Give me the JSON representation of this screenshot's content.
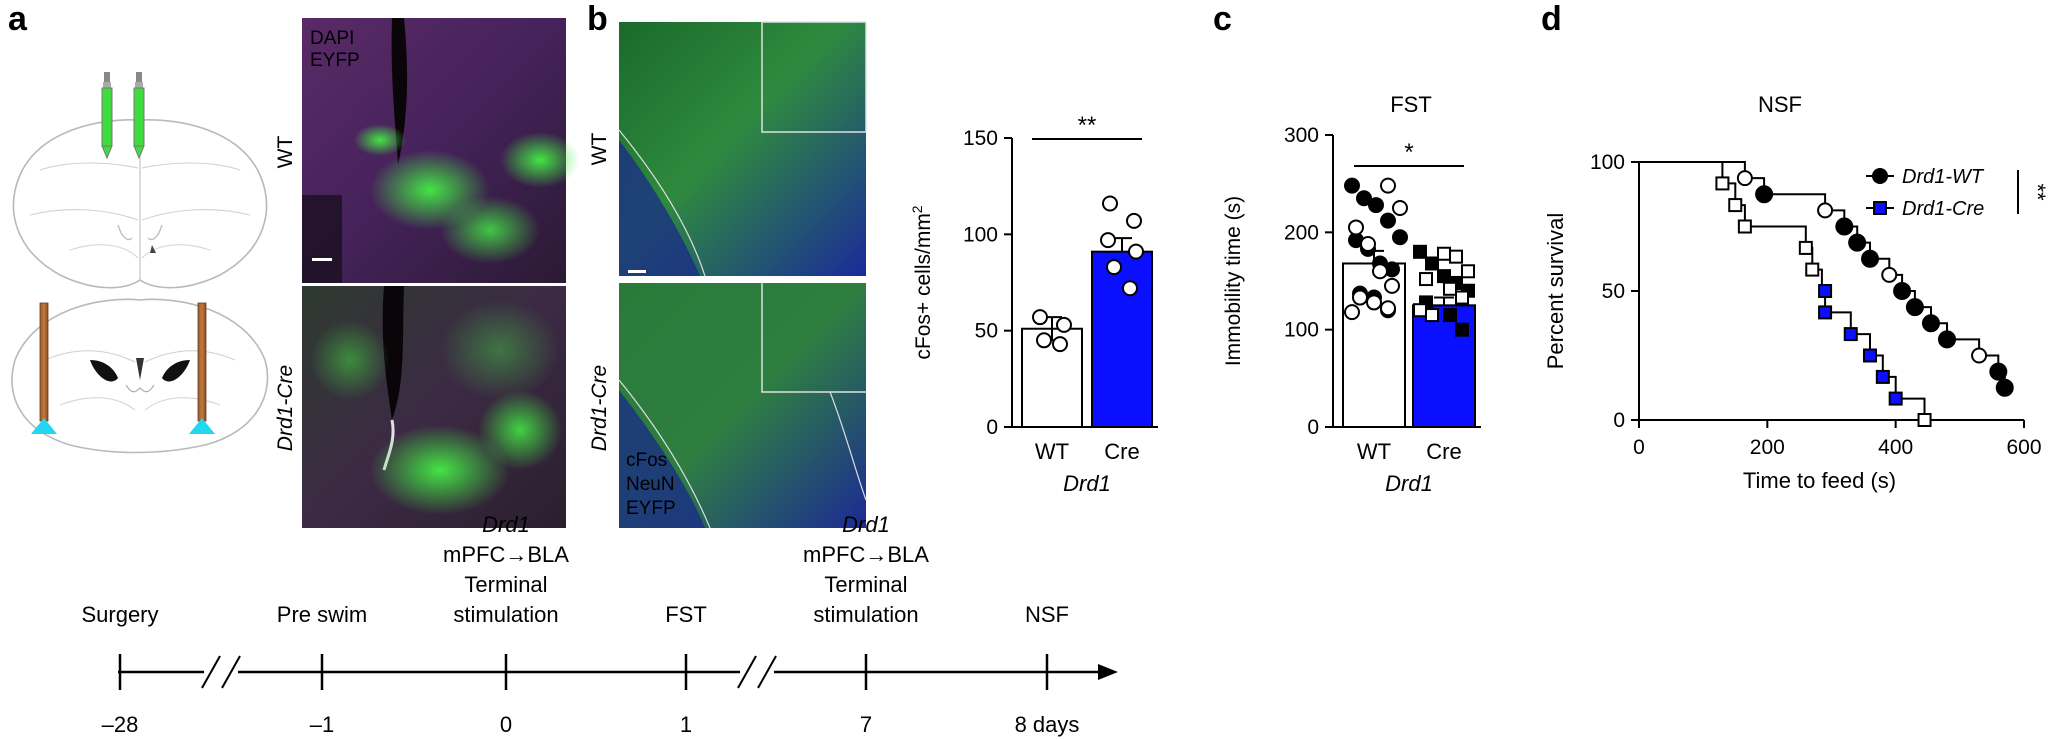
{
  "panels": {
    "a": "a",
    "b": "b",
    "c": "c",
    "d": "d"
  },
  "micrographs_a": {
    "legend_dapi": "DAPI",
    "legend_eyfp": "EYFP",
    "row_wt": "WT",
    "row_cre": "Drd1-Cre",
    "colors": {
      "dapi": "#e020e0",
      "eyfp": "#44ee44",
      "tissue": "#4a2250"
    }
  },
  "micrographs_b": {
    "row_wt": "WT",
    "row_cre": "Drd1-Cre",
    "legend_cfos": "cFos",
    "legend_neun": "NeuN",
    "legend_eyfp": "EYFP",
    "colors": {
      "cfos": "#ff2020",
      "neun": "#2030ff",
      "eyfp": "#30e030"
    }
  },
  "timeline": {
    "events": [
      {
        "label_lines": [
          "Surgery"
        ],
        "day": "–28"
      },
      {
        "label_lines": [
          "Pre swim"
        ],
        "day": "–1"
      },
      {
        "label_lines": [
          "Drd1",
          "mPFC→BLA",
          "Terminal",
          "stimulation"
        ],
        "day": "0"
      },
      {
        "label_lines": [
          "FST"
        ],
        "day": "1"
      },
      {
        "label_lines": [
          "Drd1",
          "mPFC→BLA",
          "Terminal",
          "stimulation"
        ],
        "day": "7"
      },
      {
        "label_lines": [
          "NSF"
        ],
        "day": "8 days"
      }
    ]
  },
  "chart_data": [
    {
      "id": "b-cfos",
      "type": "bar",
      "title": "",
      "categories": [
        "WT",
        "Cre"
      ],
      "values": [
        51,
        91
      ],
      "errors": [
        6,
        7
      ],
      "bar_colors": [
        "#ffffff",
        "#0a10ff"
      ],
      "points": [
        [
          57,
          53,
          45,
          43
        ],
        [
          116,
          107,
          97,
          91,
          83,
          72
        ]
      ],
      "ylabel": "cFos+ cells/mm²",
      "ylabel_main": "cFos+ cells/mm",
      "ylabel_sup": "2",
      "xlabel": "Drd1",
      "ylim": [
        0,
        150
      ],
      "yticks": [
        0,
        50,
        100,
        150
      ],
      "significance": "**"
    },
    {
      "id": "c-fst",
      "type": "bar",
      "title": "FST",
      "categories": [
        "WT",
        "Cre"
      ],
      "values": [
        168,
        125
      ],
      "errors": [
        13,
        8
      ],
      "bar_colors": [
        "#ffffff",
        "#0a10ff"
      ],
      "points_filled": [
        [
          248,
          235,
          228,
          212,
          195,
          192,
          183,
          168,
          162,
          137,
          133,
          120
        ],
        [
          180,
          168,
          155,
          148,
          140,
          128,
          115,
          100
        ]
      ],
      "points_open": [
        [
          248,
          225,
          205,
          188,
          160,
          145,
          133,
          128,
          122,
          118
        ],
        [
          178,
          175,
          160,
          152,
          142,
          133,
          120,
          115
        ]
      ],
      "ylabel": "Immobility time (s)",
      "xlabel": "Drd1",
      "ylim": [
        0,
        300
      ],
      "yticks": [
        0,
        100,
        200,
        300
      ],
      "significance": "*"
    },
    {
      "id": "d-nsf",
      "type": "line",
      "title": "NSF",
      "xlabel": "Time to feed (s)",
      "ylabel": "Percent survival",
      "xlim": [
        0,
        600
      ],
      "ylim": [
        0,
        100
      ],
      "xticks": [
        0,
        200,
        400,
        600
      ],
      "yticks": [
        0,
        50,
        100
      ],
      "significance": "**",
      "series": [
        {
          "name": "Drd1-WT",
          "color": "#000000",
          "steps": [
            [
              0,
              100
            ],
            [
              165,
              100
            ],
            [
              165,
              93.75
            ],
            [
              195,
              93.75
            ],
            [
              195,
              87.5
            ],
            [
              290,
              87.5
            ],
            [
              290,
              81.25
            ],
            [
              320,
              81.25
            ],
            [
              320,
              75
            ],
            [
              340,
              75
            ],
            [
              340,
              68.75
            ],
            [
              360,
              68.75
            ],
            [
              360,
              62.5
            ],
            [
              390,
              62.5
            ],
            [
              390,
              56.25
            ],
            [
              410,
              56.25
            ],
            [
              410,
              50
            ],
            [
              430,
              50
            ],
            [
              430,
              43.75
            ],
            [
              455,
              43.75
            ],
            [
              455,
              37.5
            ],
            [
              480,
              37.5
            ],
            [
              480,
              31.25
            ],
            [
              530,
              31.25
            ],
            [
              530,
              25
            ],
            [
              560,
              25
            ],
            [
              560,
              18.75
            ],
            [
              570,
              18.75
            ],
            [
              570,
              12.5
            ]
          ],
          "filled_points": [
            [
              195,
              87.5
            ],
            [
              320,
              75
            ],
            [
              340,
              68.75
            ],
            [
              360,
              62.5
            ],
            [
              410,
              50
            ],
            [
              430,
              43.75
            ],
            [
              455,
              37.5
            ],
            [
              480,
              31.25
            ],
            [
              560,
              18.75
            ],
            [
              570,
              12.5
            ]
          ],
          "open_points": [
            [
              165,
              93.75
            ],
            [
              290,
              81.25
            ],
            [
              390,
              56.25
            ],
            [
              530,
              25
            ]
          ]
        },
        {
          "name": "Drd1-Cre",
          "color": "#0a10ff",
          "steps": [
            [
              0,
              100
            ],
            [
              130,
              100
            ],
            [
              130,
              91.7
            ],
            [
              150,
              91.7
            ],
            [
              150,
              83.3
            ],
            [
              165,
              83.3
            ],
            [
              165,
              75
            ],
            [
              260,
              75
            ],
            [
              260,
              66.7
            ],
            [
              270,
              66.7
            ],
            [
              270,
              58.3
            ],
            [
              285,
              58.3
            ],
            [
              285,
              50
            ],
            [
              290,
              50
            ],
            [
              290,
              41.7
            ],
            [
              330,
              41.7
            ],
            [
              330,
              33.3
            ],
            [
              360,
              33.3
            ],
            [
              360,
              25
            ],
            [
              380,
              25
            ],
            [
              380,
              16.7
            ],
            [
              400,
              16.7
            ],
            [
              400,
              8.3
            ],
            [
              445,
              8.3
            ],
            [
              445,
              0
            ]
          ],
          "filled_points": [
            [
              290,
              50
            ],
            [
              290,
              41.7
            ],
            [
              330,
              33.3
            ],
            [
              360,
              25
            ],
            [
              380,
              16.7
            ],
            [
              400,
              8.3
            ]
          ],
          "open_points": [
            [
              130,
              91.7
            ],
            [
              150,
              83.3
            ],
            [
              165,
              75
            ],
            [
              260,
              66.7
            ],
            [
              270,
              58.3
            ],
            [
              445,
              0
            ]
          ]
        }
      ]
    }
  ]
}
